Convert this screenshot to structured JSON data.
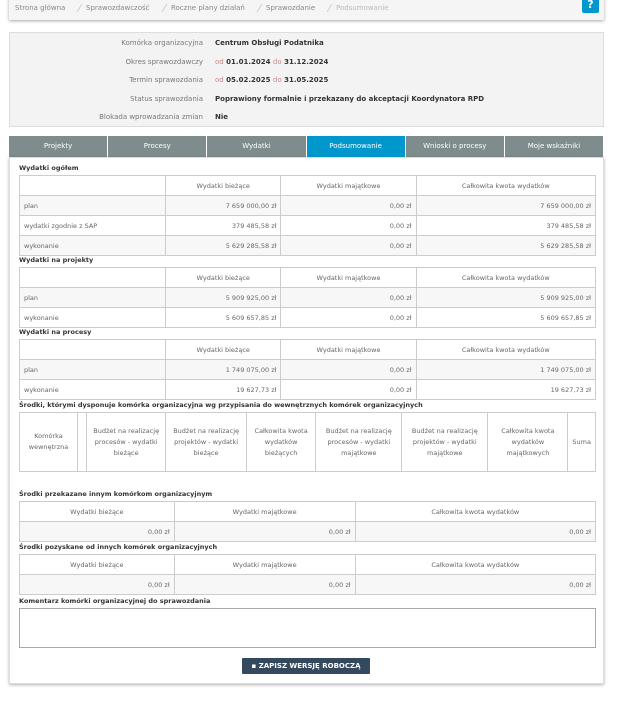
{
  "breadcrumb": [
    "Strona główna",
    "Sprawozdawczość",
    "Roczne plany działań",
    "Sprawozdanie",
    "Podsumowanie"
  ],
  "help_label": "?",
  "info": [
    {
      "label": "Komórka organizacyjna",
      "value": "Centrum Obsługi Podatnika"
    },
    {
      "label": "Okres sprawozdawczy",
      "from_label": "od",
      "from": "01.01.2024",
      "to_label": "do",
      "to": "31.12.2024"
    },
    {
      "label": "Termin sprawozdania",
      "from_label": "od",
      "from": "05.02.2025",
      "to_label": "do",
      "to": "31.05.2025"
    },
    {
      "label": "Status sprawozdania",
      "value": "Poprawiony formalnie i przekazany do akceptacji Koordynatora RPD"
    },
    {
      "label": "Blokada wprowadzania zmian",
      "value": "Nie"
    }
  ],
  "tabs": [
    "Projekty",
    "Procesy",
    "Wydatki",
    "Podsumowanie",
    "Wnioski o procesy",
    "Moje wskaźniki"
  ],
  "active_tab": "Podsumowanie",
  "cols": [
    "Wydatki bieżące",
    "Wydatki majątkowe",
    "Całkowita kwota wydatków"
  ],
  "s1": {
    "title": "Wydatki ogółem",
    "rows": [
      [
        "plan",
        "7 659 000,00 zł",
        "0,00 zł",
        "7 659 000,00 zł"
      ],
      [
        "wydatki zgodnie z SAP",
        "379 485,58 zł",
        "0,00 zł",
        "379 485,58 zł"
      ],
      [
        "wykonanie",
        "5 629 285,58 zł",
        "0,00 zł",
        "5 629 285,58 zł"
      ]
    ]
  },
  "s2": {
    "title": "Wydatki na projekty",
    "rows": [
      [
        "plan",
        "5 909 925,00 zł",
        "0,00 zł",
        "5 909 925,00 zł"
      ],
      [
        "wykonanie",
        "5 609 657,85 zł",
        "0,00 zł",
        "5 609 657,85 zł"
      ]
    ]
  },
  "s3": {
    "title": "Wydatki na procesy",
    "rows": [
      [
        "plan",
        "1 749 075,00 zł",
        "0,00 zł",
        "1 749 075,00 zł"
      ],
      [
        "wykonanie",
        "19 627,73 zł",
        "0,00 zł",
        "19 627,73 zł"
      ]
    ]
  },
  "s4": {
    "title": "Środki, którymi dysponuje komórka organizacyjna wg przypisania do wewnętrznych komórek organizacyjnych",
    "cols": [
      "Komórka wewnętrzna",
      "",
      "Budżet na realizację procesów - wydatki bieżące",
      "Budżet na realizację projektów - wydatki bieżące",
      "Całkowita kwota wydatków bieżących",
      "Budżet na realizację procesów - wydatki majątkowe",
      "Budżet na realizację projektów - wydatki majątkowe",
      "Całkowita kwota wydatków majątkowych",
      "Suma"
    ]
  },
  "s5": {
    "title": "Środki przekazane innym komórkom organizacyjnym",
    "values": [
      "0,00 zł",
      "0,00 zł",
      "0,00 zł"
    ]
  },
  "s6": {
    "title": "Środki pozyskane od innych komórek organizacyjnych",
    "values": [
      "0,00 zł",
      "0,00 zł",
      "0,00 zł"
    ]
  },
  "comment_label": "Komentarz komórki organizacyjnej do sprawozdania",
  "save_label": "ZAPISZ WERSJĘ ROBOCZĄ"
}
